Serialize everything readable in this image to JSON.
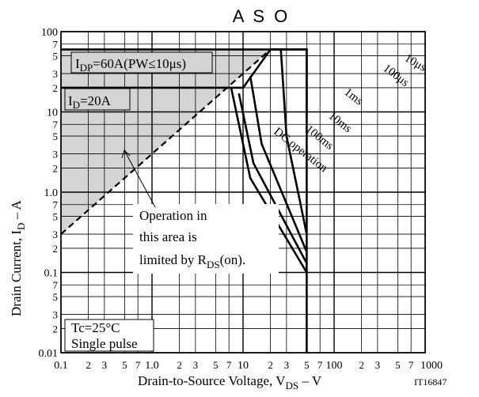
{
  "chart_data": {
    "type": "line",
    "title": "A S O",
    "xlabel": "Drain-to-Source Voltage, V",
    "xlabel_sub": "DS",
    "xlabel_tail": " – V",
    "ylabel": "Drain Current, I",
    "ylabel_sub": "D",
    "ylabel_tail": " – A",
    "figure_id": "IT16847",
    "x_scale": "log",
    "y_scale": "log",
    "xlim": [
      0.1,
      1000
    ],
    "ylim": [
      0.01,
      100
    ],
    "grid": true,
    "x_ticks": [
      {
        "v": 0.1,
        "t": "0.1",
        "major": true
      },
      {
        "v": 0.2,
        "t": "2"
      },
      {
        "v": 0.3,
        "t": "3"
      },
      {
        "v": 0.5,
        "t": "5"
      },
      {
        "v": 0.7,
        "t": "7"
      },
      {
        "v": 1,
        "t": "1.0",
        "major": true
      },
      {
        "v": 2,
        "t": "2"
      },
      {
        "v": 3,
        "t": "3"
      },
      {
        "v": 5,
        "t": "5"
      },
      {
        "v": 7,
        "t": "7"
      },
      {
        "v": 10,
        "t": "10",
        "major": true
      },
      {
        "v": 20,
        "t": "2"
      },
      {
        "v": 30,
        "t": "3"
      },
      {
        "v": 50,
        "t": "5"
      },
      {
        "v": 70,
        "t": "7"
      },
      {
        "v": 100,
        "t": "100",
        "major": true
      },
      {
        "v": 200,
        "t": "2"
      },
      {
        "v": 300,
        "t": "3"
      },
      {
        "v": 500,
        "t": "5"
      },
      {
        "v": 700,
        "t": "7"
      },
      {
        "v": 1000,
        "t": "1000",
        "major": true
      }
    ],
    "y_ticks": [
      {
        "v": 100,
        "t": "100",
        "major": true
      },
      {
        "v": 70,
        "t": "7"
      },
      {
        "v": 50,
        "t": "5"
      },
      {
        "v": 30,
        "t": "3"
      },
      {
        "v": 20,
        "t": "2"
      },
      {
        "v": 10,
        "t": "10",
        "major": true
      },
      {
        "v": 7,
        "t": "7"
      },
      {
        "v": 5,
        "t": "5"
      },
      {
        "v": 3,
        "t": "3"
      },
      {
        "v": 2,
        "t": "2"
      },
      {
        "v": 1,
        "t": "1.0",
        "major": true
      },
      {
        "v": 0.7,
        "t": "7"
      },
      {
        "v": 0.5,
        "t": "5"
      },
      {
        "v": 0.3,
        "t": "3"
      },
      {
        "v": 0.2,
        "t": "2"
      },
      {
        "v": 0.1,
        "t": "0.1",
        "major": true
      },
      {
        "v": 0.07,
        "t": "7"
      },
      {
        "v": 0.05,
        "t": "5"
      },
      {
        "v": 0.03,
        "t": "3"
      },
      {
        "v": 0.02,
        "t": "2"
      },
      {
        "v": 0.01,
        "t": "0.01",
        "major": true
      }
    ],
    "series": [
      {
        "name": "10μs",
        "points": [
          [
            0.1,
            60
          ],
          [
            50,
            60
          ],
          [
            50,
            2.5
          ],
          [
            50,
            0.01
          ]
        ]
      },
      {
        "name": "100μs",
        "points": [
          [
            20,
            60
          ],
          [
            50,
            60
          ],
          [
            50,
            8.5
          ]
        ]
      },
      {
        "name": "1ms",
        "points": [
          [
            7.4,
            20
          ],
          [
            10,
            20
          ],
          [
            20,
            60
          ],
          [
            21,
            60
          ],
          [
            26,
            60
          ],
          [
            30,
            5
          ],
          [
            50,
            0.3
          ]
        ]
      },
      {
        "name": "10ms",
        "points": [
          [
            12,
            28
          ],
          [
            16,
            4
          ],
          [
            50,
            0.18
          ]
        ]
      },
      {
        "name": "100ms",
        "points": [
          [
            9,
            17
          ],
          [
            13,
            2.3
          ],
          [
            50,
            0.13
          ]
        ]
      },
      {
        "name": "DC operation",
        "points": [
          [
            7.4,
            20
          ],
          [
            12,
            1.5
          ],
          [
            50,
            0.1
          ]
        ]
      },
      {
        "name": "I_D=20A",
        "points": [
          [
            0.1,
            20
          ],
          [
            7.4,
            20
          ]
        ]
      },
      {
        "name": "RDS(on) limit",
        "dashed": true,
        "points": [
          [
            0.1,
            0.3
          ],
          [
            20,
            60
          ]
        ]
      }
    ],
    "shaded_region": [
      [
        0.1,
        0.3
      ],
      [
        0.1,
        60
      ],
      [
        20,
        60
      ]
    ],
    "annotations": {
      "idp_prefix": "I",
      "idp_sub": "DP",
      "idp_text": "=60A(PW≤10μs)",
      "id_prefix": "I",
      "id_sub": "D",
      "id_text": "=20A",
      "operation_line1": "Operation in",
      "operation_line2": "this area is",
      "operation_line3_prefix": "limited by R",
      "operation_line3_sub": "DS",
      "operation_line3_tail": "(on).",
      "condition_line1": "Tc=25°C",
      "condition_line2": "Single pulse"
    }
  }
}
